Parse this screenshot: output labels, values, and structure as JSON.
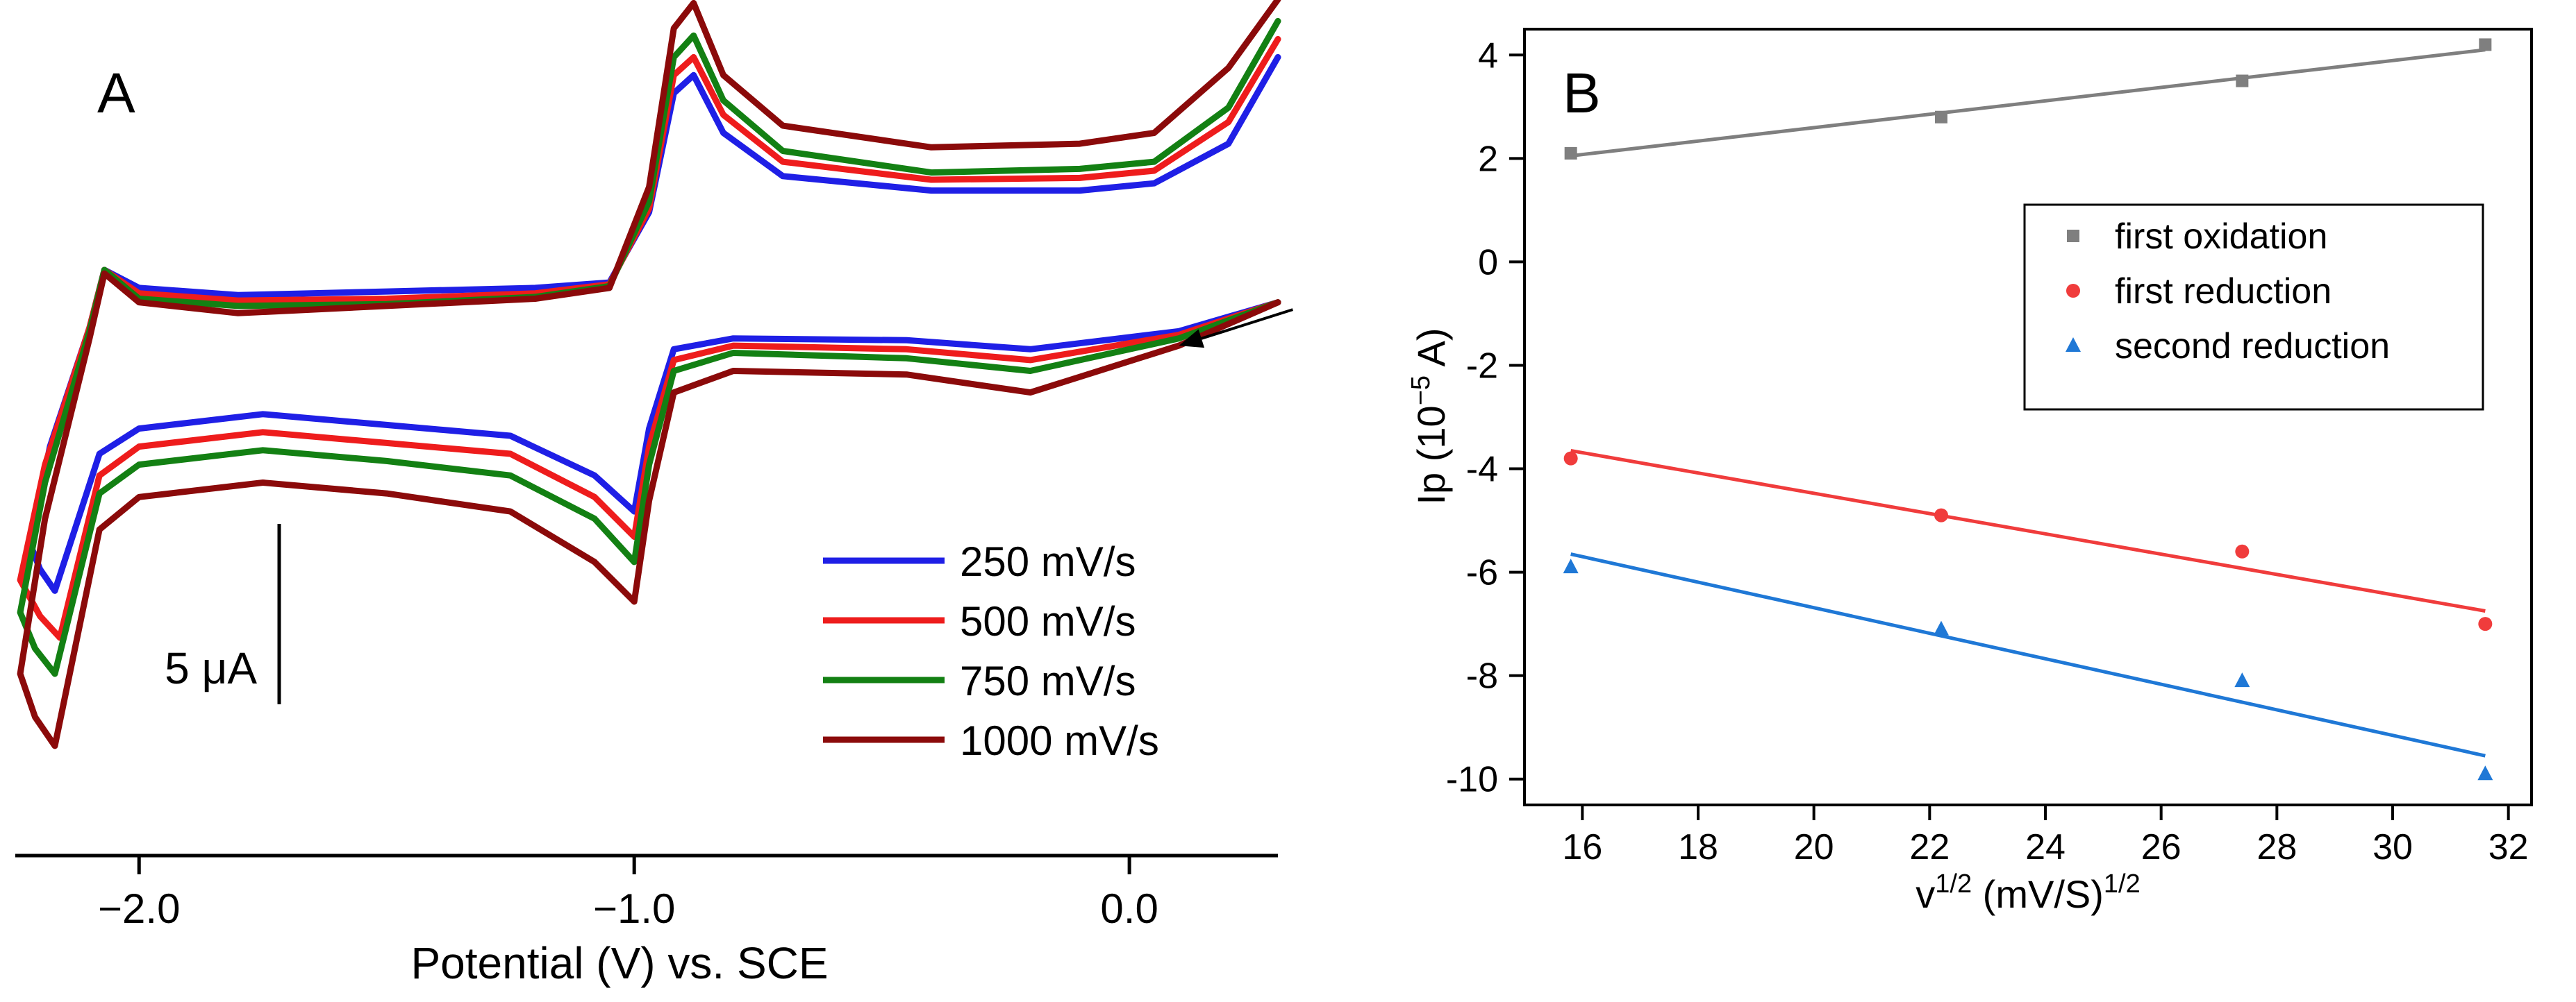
{
  "chart_data": [
    {
      "panel_label": "A",
      "type": "line",
      "title": "",
      "xlabel": "Potential (V) vs. SCE",
      "ylabel": "",
      "xlim": [
        -2.25,
        0.3
      ],
      "ylim": [
        -15.9,
        7.0
      ],
      "x_ticks": [
        -2.0,
        -1.0,
        0.0
      ],
      "x_tick_labels": [
        "−2.0",
        "−1.0",
        "0.0"
      ],
      "scale_bar": {
        "label": "5 μA",
        "value_uA": 5
      },
      "legend": {
        "position": "bottom-right",
        "entries": [
          "250 mV/s",
          "500 mV/s",
          "750 mV/s",
          "1000 mV/s"
        ]
      },
      "arrow_annotation": {
        "from": [
          0.33,
          -1.2
        ],
        "to": [
          0.1,
          -2.2
        ]
      },
      "series": [
        {
          "name": "250 mV/s",
          "color": "#1f1fe6",
          "points": [
            [
              0.3,
              -1.0
            ],
            [
              0.1,
              -1.8
            ],
            [
              -0.2,
              -2.3
            ],
            [
              -0.45,
              -2.05
            ],
            [
              -0.8,
              -2.0
            ],
            [
              -0.92,
              -2.3
            ],
            [
              -0.97,
              -4.5
            ],
            [
              -1.0,
              -6.8
            ],
            [
              -1.08,
              -5.8
            ],
            [
              -1.25,
              -4.7
            ],
            [
              -1.5,
              -4.4
            ],
            [
              -1.75,
              -4.1
            ],
            [
              -2.0,
              -4.5
            ],
            [
              -2.08,
              -5.2
            ],
            [
              -2.17,
              -9.0
            ],
            [
              -2.2,
              -8.4
            ],
            [
              -2.22,
              -7.7
            ],
            [
              -2.18,
              -5.0
            ],
            [
              -2.1,
              -1.7
            ],
            [
              -2.07,
              -0.1
            ],
            [
              -2.0,
              -0.6
            ],
            [
              -1.8,
              -0.8
            ],
            [
              -1.5,
              -0.7
            ],
            [
              -1.2,
              -0.6
            ],
            [
              -1.05,
              -0.45
            ],
            [
              -0.97,
              1.5
            ],
            [
              -0.92,
              4.8
            ],
            [
              -0.88,
              5.3
            ],
            [
              -0.82,
              3.7
            ],
            [
              -0.7,
              2.5
            ],
            [
              -0.4,
              2.1
            ],
            [
              -0.1,
              2.1
            ],
            [
              0.05,
              2.3
            ],
            [
              0.2,
              3.4
            ],
            [
              0.3,
              5.8
            ]
          ]
        },
        {
          "name": "500 mV/s",
          "color": "#ee1c1c",
          "points": [
            [
              0.3,
              -1.0
            ],
            [
              0.1,
              -1.9
            ],
            [
              -0.2,
              -2.6
            ],
            [
              -0.45,
              -2.3
            ],
            [
              -0.8,
              -2.2
            ],
            [
              -0.92,
              -2.6
            ],
            [
              -0.97,
              -5.0
            ],
            [
              -1.0,
              -7.5
            ],
            [
              -1.08,
              -6.4
            ],
            [
              -1.25,
              -5.2
            ],
            [
              -1.5,
              -4.9
            ],
            [
              -1.75,
              -4.6
            ],
            [
              -2.0,
              -5.0
            ],
            [
              -2.08,
              -5.8
            ],
            [
              -2.16,
              -10.3
            ],
            [
              -2.2,
              -9.7
            ],
            [
              -2.24,
              -8.7
            ],
            [
              -2.19,
              -5.5
            ],
            [
              -2.1,
              -1.7
            ],
            [
              -2.07,
              -0.1
            ],
            [
              -2.0,
              -0.75
            ],
            [
              -1.8,
              -0.95
            ],
            [
              -1.5,
              -0.9
            ],
            [
              -1.2,
              -0.75
            ],
            [
              -1.05,
              -0.5
            ],
            [
              -0.97,
              1.6
            ],
            [
              -0.92,
              5.3
            ],
            [
              -0.88,
              5.8
            ],
            [
              -0.82,
              4.2
            ],
            [
              -0.7,
              2.9
            ],
            [
              -0.4,
              2.4
            ],
            [
              -0.1,
              2.45
            ],
            [
              0.05,
              2.65
            ],
            [
              0.2,
              4.0
            ],
            [
              0.3,
              6.3
            ]
          ]
        },
        {
          "name": "750 mV/s",
          "color": "#138013",
          "points": [
            [
              0.3,
              -1.0
            ],
            [
              0.1,
              -2.0
            ],
            [
              -0.2,
              -2.9
            ],
            [
              -0.45,
              -2.55
            ],
            [
              -0.8,
              -2.4
            ],
            [
              -0.92,
              -2.9
            ],
            [
              -0.97,
              -5.5
            ],
            [
              -1.0,
              -8.2
            ],
            [
              -1.08,
              -7.0
            ],
            [
              -1.25,
              -5.8
            ],
            [
              -1.5,
              -5.4
            ],
            [
              -1.75,
              -5.1
            ],
            [
              -2.0,
              -5.5
            ],
            [
              -2.08,
              -6.3
            ],
            [
              -2.17,
              -11.3
            ],
            [
              -2.21,
              -10.6
            ],
            [
              -2.24,
              -9.6
            ],
            [
              -2.19,
              -6.0
            ],
            [
              -2.1,
              -1.8
            ],
            [
              -2.07,
              -0.1
            ],
            [
              -2.0,
              -0.9
            ],
            [
              -1.8,
              -1.1
            ],
            [
              -1.5,
              -1.05
            ],
            [
              -1.2,
              -0.85
            ],
            [
              -1.05,
              -0.55
            ],
            [
              -0.97,
              1.8
            ],
            [
              -0.92,
              5.8
            ],
            [
              -0.88,
              6.4
            ],
            [
              -0.82,
              4.6
            ],
            [
              -0.7,
              3.2
            ],
            [
              -0.4,
              2.6
            ],
            [
              -0.1,
              2.7
            ],
            [
              0.05,
              2.9
            ],
            [
              0.2,
              4.4
            ],
            [
              0.3,
              6.8
            ]
          ]
        },
        {
          "name": "1000 mV/s",
          "color": "#8b0a0a",
          "points": [
            [
              0.3,
              -1.0
            ],
            [
              0.1,
              -2.2
            ],
            [
              -0.2,
              -3.5
            ],
            [
              -0.45,
              -3.0
            ],
            [
              -0.8,
              -2.9
            ],
            [
              -0.92,
              -3.5
            ],
            [
              -0.97,
              -6.5
            ],
            [
              -1.0,
              -9.3
            ],
            [
              -1.08,
              -8.2
            ],
            [
              -1.25,
              -6.8
            ],
            [
              -1.5,
              -6.3
            ],
            [
              -1.75,
              -6.0
            ],
            [
              -2.0,
              -6.4
            ],
            [
              -2.08,
              -7.3
            ],
            [
              -2.17,
              -13.3
            ],
            [
              -2.21,
              -12.5
            ],
            [
              -2.24,
              -11.3
            ],
            [
              -2.19,
              -7.0
            ],
            [
              -2.1,
              -2.0
            ],
            [
              -2.07,
              -0.2
            ],
            [
              -2.0,
              -1.0
            ],
            [
              -1.8,
              -1.3
            ],
            [
              -1.5,
              -1.1
            ],
            [
              -1.2,
              -0.9
            ],
            [
              -1.05,
              -0.6
            ],
            [
              -0.97,
              2.2
            ],
            [
              -0.92,
              6.6
            ],
            [
              -0.88,
              7.3
            ],
            [
              -0.82,
              5.3
            ],
            [
              -0.7,
              3.9
            ],
            [
              -0.4,
              3.3
            ],
            [
              -0.1,
              3.4
            ],
            [
              0.05,
              3.7
            ],
            [
              0.2,
              5.5
            ],
            [
              0.3,
              7.4
            ]
          ]
        }
      ]
    },
    {
      "panel_label": "B",
      "type": "scatter",
      "title": "",
      "xlabel": {
        "base": "v",
        "sup": "1/2",
        "rest": " (mV/S)",
        "sup2": "1/2"
      },
      "ylabel": {
        "base": "Ip (10",
        "sup": "−5",
        "rest": " A)"
      },
      "xlim": [
        15,
        32.4
      ],
      "ylim": [
        -10.5,
        4.5
      ],
      "x_ticks": [
        16,
        18,
        20,
        22,
        24,
        26,
        28,
        30,
        32
      ],
      "y_ticks": [
        4,
        2,
        0,
        -2,
        -4,
        -6,
        -8,
        -10
      ],
      "x_tick_labels": [
        "16",
        "18",
        "20",
        "22",
        "24",
        "26",
        "28",
        "30",
        "32"
      ],
      "y_tick_labels": [
        "4",
        "2",
        "0",
        "-2",
        "-4",
        "-6",
        "-8",
        "-10"
      ],
      "legend": {
        "position": "top-right",
        "entries": [
          "first oxidation",
          "first reduction",
          "second reduction"
        ]
      },
      "series": [
        {
          "name": "first oxidation",
          "marker": "square",
          "color": "#7f7f7f",
          "x": [
            15.8,
            22.2,
            27.4,
            31.6
          ],
          "y": [
            2.1,
            2.8,
            3.5,
            4.2
          ],
          "fit": [
            [
              15.8,
              2.05
            ],
            [
              31.6,
              4.1
            ]
          ]
        },
        {
          "name": "first reduction",
          "marker": "circle",
          "color": "#f03c3c",
          "x": [
            15.8,
            22.2,
            27.4,
            31.6
          ],
          "y": [
            -3.8,
            -4.9,
            -5.6,
            -7.0
          ],
          "fit": [
            [
              15.8,
              -3.65
            ],
            [
              31.6,
              -6.75
            ]
          ]
        },
        {
          "name": "second reduction",
          "marker": "triangle",
          "color": "#1f78d6",
          "x": [
            15.8,
            22.2,
            27.4,
            31.6
          ],
          "y": [
            -5.9,
            -7.1,
            -8.1,
            -9.9
          ],
          "fit": [
            [
              15.8,
              -5.65
            ],
            [
              31.6,
              -9.55
            ]
          ]
        }
      ]
    }
  ]
}
